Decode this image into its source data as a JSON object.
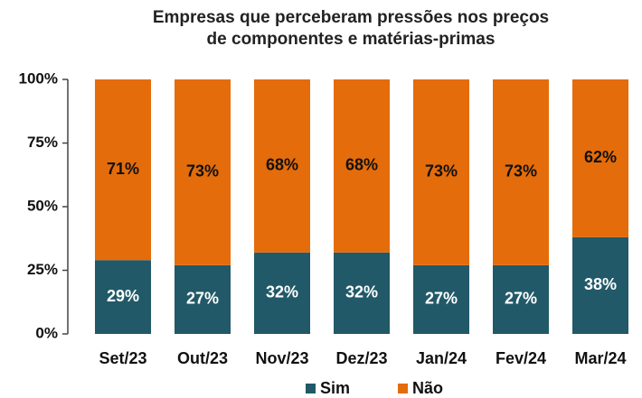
{
  "chart_data": {
    "type": "stacked_bar",
    "title": [
      "Empresas que perceberam pressões nos preços",
      "de componentes e matérias-primas"
    ],
    "categories": [
      "Set/23",
      "Out/23",
      "Nov/23",
      "Dez/23",
      "Jan/24",
      "Fev/24",
      "Mar/24"
    ],
    "series": [
      {
        "name": "Sim",
        "color": "#215968",
        "values": [
          29,
          27,
          32,
          32,
          27,
          27,
          38
        ],
        "value_labels": [
          "29%",
          "27%",
          "32%",
          "32%",
          "27%",
          "27%",
          "38%"
        ]
      },
      {
        "name": "Não",
        "color": "#e46c0a",
        "values": [
          71,
          73,
          68,
          68,
          73,
          73,
          62
        ],
        "value_labels": [
          "71%",
          "73%",
          "68%",
          "68%",
          "73%",
          "73%",
          "62%"
        ]
      }
    ],
    "ylim": [
      0,
      100
    ],
    "yticks": [
      {
        "value": 0,
        "label": "0%"
      },
      {
        "value": 25,
        "label": "25%"
      },
      {
        "value": 50,
        "label": "50%"
      },
      {
        "value": 75,
        "label": "75%"
      },
      {
        "value": 100,
        "label": "100%"
      }
    ],
    "legend": "bottom"
  }
}
